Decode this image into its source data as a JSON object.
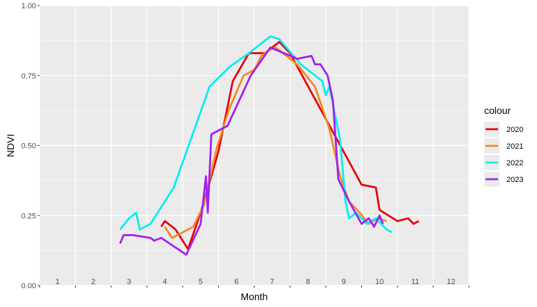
{
  "chart_data": {
    "type": "line",
    "title": "",
    "xlabel": "Month",
    "ylabel": "NDVI",
    "xlim": [
      0.5,
      12.5
    ],
    "ylim": [
      0,
      1
    ],
    "x_tick_labels": [
      "1",
      "2",
      "3",
      "4",
      "5",
      "6",
      "7",
      "8",
      "9",
      "10",
      "11",
      "12"
    ],
    "y_ticks": [
      0,
      0.25,
      0.5,
      0.75,
      1.0
    ],
    "y_tick_labels": [
      "0.00",
      "0.25",
      "0.50",
      "0.75",
      "1.00"
    ],
    "grid": true,
    "legend": {
      "title": "colour",
      "placement": "right"
    },
    "colors": {
      "panel": "#ebebeb",
      "grid": "#ffffff"
    },
    "series": [
      {
        "name": "2020",
        "color": "#e8000b",
        "points": [
          [
            3.9,
            0.21
          ],
          [
            4.0,
            0.23
          ],
          [
            4.3,
            0.2
          ],
          [
            4.65,
            0.13
          ],
          [
            5.0,
            0.26
          ],
          [
            5.3,
            0.39
          ],
          [
            5.5,
            0.48
          ],
          [
            5.9,
            0.73
          ],
          [
            6.35,
            0.83
          ],
          [
            6.8,
            0.83
          ],
          [
            7.2,
            0.87
          ],
          [
            7.5,
            0.83
          ],
          [
            9.5,
            0.36
          ],
          [
            9.9,
            0.35
          ],
          [
            10.0,
            0.27
          ],
          [
            10.5,
            0.23
          ],
          [
            10.8,
            0.24
          ],
          [
            10.95,
            0.22
          ],
          [
            11.1,
            0.23
          ]
        ]
      },
      {
        "name": "2021",
        "color": "#f58a1f",
        "points": [
          [
            4.0,
            0.21
          ],
          [
            4.2,
            0.17
          ],
          [
            4.8,
            0.21
          ],
          [
            5.1,
            0.29
          ],
          [
            5.45,
            0.49
          ],
          [
            5.8,
            0.63
          ],
          [
            6.2,
            0.75
          ],
          [
            6.5,
            0.77
          ],
          [
            6.7,
            0.82
          ],
          [
            6.9,
            0.84
          ],
          [
            7.1,
            0.85
          ],
          [
            7.7,
            0.79
          ],
          [
            8.2,
            0.71
          ],
          [
            8.6,
            0.56
          ],
          [
            8.9,
            0.39
          ],
          [
            9.15,
            0.3
          ],
          [
            9.45,
            0.26
          ],
          [
            9.7,
            0.22
          ],
          [
            9.95,
            0.24
          ],
          [
            10.2,
            0.23
          ]
        ]
      },
      {
        "name": "2022",
        "color": "#00eeee",
        "points": [
          [
            2.75,
            0.2
          ],
          [
            3.0,
            0.24
          ],
          [
            3.2,
            0.26
          ],
          [
            3.3,
            0.2
          ],
          [
            3.6,
            0.22
          ],
          [
            4.25,
            0.35
          ],
          [
            5.25,
            0.71
          ],
          [
            5.8,
            0.78
          ],
          [
            6.35,
            0.83
          ],
          [
            6.95,
            0.89
          ],
          [
            7.2,
            0.88
          ],
          [
            7.8,
            0.79
          ],
          [
            8.4,
            0.73
          ],
          [
            8.5,
            0.68
          ],
          [
            8.6,
            0.71
          ],
          [
            8.9,
            0.52
          ],
          [
            9.05,
            0.3
          ],
          [
            9.15,
            0.24
          ],
          [
            9.35,
            0.26
          ],
          [
            9.65,
            0.22
          ],
          [
            9.9,
            0.24
          ],
          [
            10.2,
            0.2
          ],
          [
            10.35,
            0.19
          ]
        ]
      },
      {
        "name": "2023",
        "color": "#a020f0",
        "points": [
          [
            2.75,
            0.15
          ],
          [
            2.85,
            0.18
          ],
          [
            3.1,
            0.18
          ],
          [
            3.6,
            0.17
          ],
          [
            3.7,
            0.16
          ],
          [
            3.9,
            0.17
          ],
          [
            4.6,
            0.11
          ],
          [
            5.0,
            0.22
          ],
          [
            5.15,
            0.39
          ],
          [
            5.2,
            0.26
          ],
          [
            5.3,
            0.54
          ],
          [
            5.75,
            0.57
          ],
          [
            6.4,
            0.75
          ],
          [
            6.95,
            0.85
          ],
          [
            7.7,
            0.81
          ],
          [
            8.1,
            0.82
          ],
          [
            8.2,
            0.79
          ],
          [
            8.35,
            0.79
          ],
          [
            8.55,
            0.75
          ],
          [
            8.7,
            0.66
          ],
          [
            8.85,
            0.38
          ],
          [
            9.15,
            0.3
          ],
          [
            9.5,
            0.22
          ],
          [
            9.7,
            0.24
          ],
          [
            9.85,
            0.21
          ],
          [
            10.0,
            0.25
          ],
          [
            10.1,
            0.22
          ]
        ]
      }
    ]
  }
}
